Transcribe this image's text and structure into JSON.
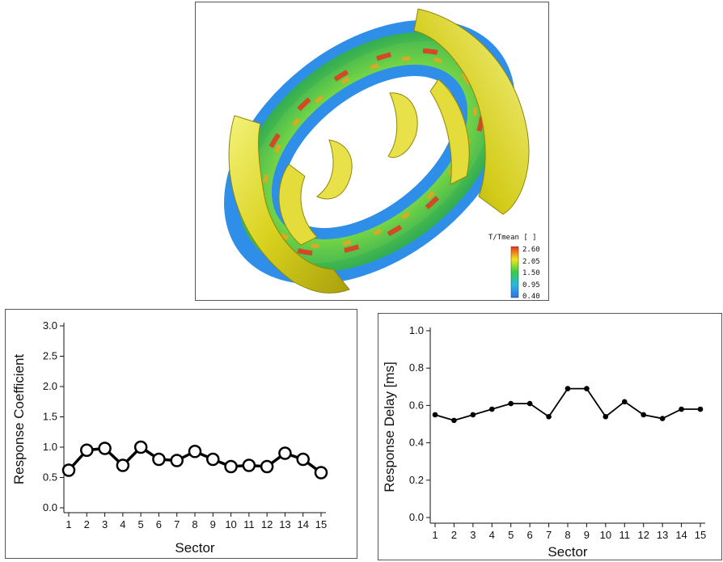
{
  "simulation": {
    "colorbar": {
      "title": "T/Tmean [ ]",
      "labels": [
        "2.60",
        "2.05",
        "1.50",
        "0.95",
        "0.40"
      ],
      "colors": [
        "#e8321e",
        "#f2e61a",
        "#35cc4a",
        "#29b8e0",
        "#2f6fe8"
      ]
    }
  },
  "chart_data": [
    {
      "type": "line",
      "xlabel": "Sector",
      "ylabel": "Response Coefficient",
      "x": [
        1,
        2,
        3,
        4,
        5,
        6,
        7,
        8,
        9,
        10,
        11,
        12,
        13,
        14,
        15
      ],
      "values": [
        0.62,
        0.95,
        0.98,
        0.7,
        1.0,
        0.8,
        0.78,
        0.93,
        0.8,
        0.68,
        0.7,
        0.68,
        0.9,
        0.8,
        0.58
      ],
      "ylim": [
        0,
        3
      ],
      "yticks": [
        "0.0",
        "0.5",
        "1.0",
        "1.5",
        "2.0",
        "2.5",
        "3.0"
      ],
      "xticks": [
        "1",
        "2",
        "3",
        "4",
        "5",
        "6",
        "7",
        "8",
        "9",
        "10",
        "11",
        "12",
        "13",
        "14",
        "15"
      ],
      "marker": "open-circle",
      "grid": false
    },
    {
      "type": "line",
      "xlabel": "Sector",
      "ylabel": "Response Delay [ms]",
      "x": [
        1,
        2,
        3,
        4,
        5,
        6,
        7,
        8,
        9,
        10,
        11,
        12,
        13,
        14,
        15
      ],
      "values": [
        0.55,
        0.52,
        0.55,
        0.58,
        0.61,
        0.61,
        0.54,
        0.69,
        0.69,
        0.54,
        0.62,
        0.55,
        0.53,
        0.58,
        0.58
      ],
      "ylim": [
        0,
        1
      ],
      "yticks": [
        "0.0",
        "0.2",
        "0.4",
        "0.6",
        "0.8",
        "1.0"
      ],
      "xticks": [
        "1",
        "2",
        "3",
        "4",
        "5",
        "6",
        "7",
        "8",
        "9",
        "10",
        "11",
        "12",
        "13",
        "14",
        "15"
      ],
      "marker": "filled-dot",
      "grid": false
    }
  ]
}
